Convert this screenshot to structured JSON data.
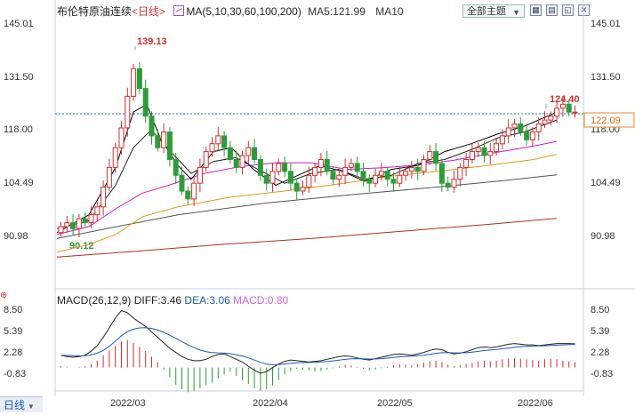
{
  "header": {
    "instrument": "布伦特原油连续",
    "period": "<日线>",
    "ma_label": "MA(5,10,30,60,100,200)",
    "ma5_label": "MA5:121.99",
    "ma10_label": "MA10"
  },
  "toolbar": {
    "theme_select": "全部主题",
    "icons": [
      "grid-icon",
      "chart-icon",
      "restore-icon",
      "close-icon"
    ]
  },
  "price_axis": {
    "ticks": [
      "145.01",
      "131.50",
      "118.00",
      "104.49",
      "90.98"
    ],
    "current_price": "122.09",
    "annotations": {
      "high": "139.13",
      "low": "90.12",
      "recent_high": "124.40"
    }
  },
  "macd": {
    "label": "MACD(26,12,9)",
    "diff": "DIFF:3.46",
    "dea": "DEA:3.06",
    "macd": "MACD:0.80",
    "ticks": [
      "8.50",
      "5.39",
      "2.28",
      "-0.83"
    ]
  },
  "x_axis": {
    "labels": [
      "2022/03",
      "2022/04",
      "2022/05",
      "2022/06"
    ]
  },
  "bottom": {
    "period_selector": "日线"
  },
  "colors": {
    "up": "#d03030",
    "down": "#2e9b3a",
    "ma5": "#000000",
    "ma30": "#d01cc6",
    "ma60": "#e09a1a",
    "ma100": "#555555",
    "ma200": "#b03020",
    "dea": "#1a5bb5"
  }
}
